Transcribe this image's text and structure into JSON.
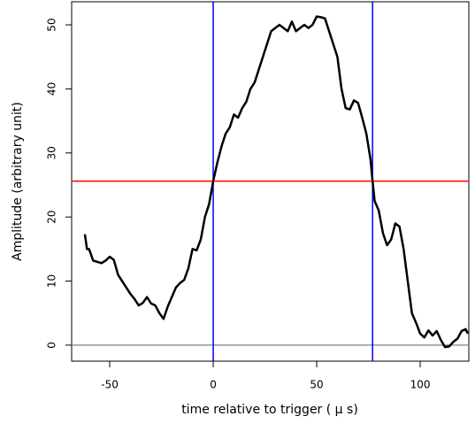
{
  "chart_data": {
    "type": "line",
    "x_label": "time relative to trigger ( μ s)",
    "y_label": "Amplitude (arbitrary unit)",
    "x": [
      -62,
      -61,
      -60,
      -58,
      -56,
      -54,
      -52,
      -50,
      -48,
      -46,
      -44,
      -42,
      -40,
      -38,
      -36,
      -34,
      -32,
      -30,
      -28,
      -26,
      -24,
      -22,
      -20,
      -18,
      -16,
      -14,
      -12,
      -10,
      -8,
      -6,
      -4,
      -2,
      0,
      2,
      4,
      6,
      8,
      10,
      12,
      14,
      16,
      18,
      20,
      22,
      24,
      26,
      28,
      30,
      32,
      34,
      36,
      38,
      40,
      42,
      44,
      46,
      48,
      50,
      52,
      54,
      56,
      58,
      60,
      62,
      64,
      66,
      68,
      70,
      72,
      74,
      76,
      77,
      78,
      80,
      82,
      84,
      86,
      88,
      90,
      92,
      94,
      96,
      98,
      100,
      102,
      104,
      106,
      108,
      110,
      112,
      114,
      116,
      118,
      120,
      122,
      123
    ],
    "series": [
      {
        "color": "#000000",
        "values": [
          17.3,
          15,
          15,
          13.2,
          13,
          12.8,
          13.2,
          13.8,
          13.3,
          11,
          10,
          9,
          8,
          7.2,
          6.2,
          6.6,
          7.5,
          6.5,
          6.2,
          5,
          4.1,
          6,
          7.5,
          9,
          9.7,
          10.2,
          12,
          15,
          14.8,
          16.5,
          20,
          22,
          25.6,
          28.5,
          31,
          33,
          34,
          36,
          35.5,
          37,
          38,
          40,
          41,
          43,
          45,
          47,
          49,
          49.5,
          50,
          49.5,
          49,
          50.5,
          49,
          49.5,
          50,
          49.5,
          50,
          51.3,
          51.2,
          51,
          49,
          47,
          45,
          40,
          37,
          36.8,
          38.2,
          37.8,
          35.5,
          33,
          29,
          25.6,
          22.5,
          21,
          17.5,
          15.6,
          16.5,
          19,
          18.5,
          15,
          10,
          5,
          3.5,
          1.8,
          1.2,
          2.3,
          1.5,
          2.2,
          0.8,
          -0.3,
          -0.2,
          0.5,
          1,
          2.2,
          2.5,
          1.8
        ]
      }
    ],
    "vlines": [
      0,
      77
    ],
    "vline_color": "#0000ff",
    "hlines": [
      25.6
    ],
    "hline_color": "#ff0000",
    "baseline": 0,
    "baseline_color": "#808080",
    "xlim": [
      -68.4,
      123.5
    ],
    "ylim": [
      -2.5,
      53.6
    ],
    "xticks": [
      -50,
      0,
      50,
      100
    ],
    "yticks": [
      0,
      10,
      20,
      30,
      40,
      50
    ]
  }
}
